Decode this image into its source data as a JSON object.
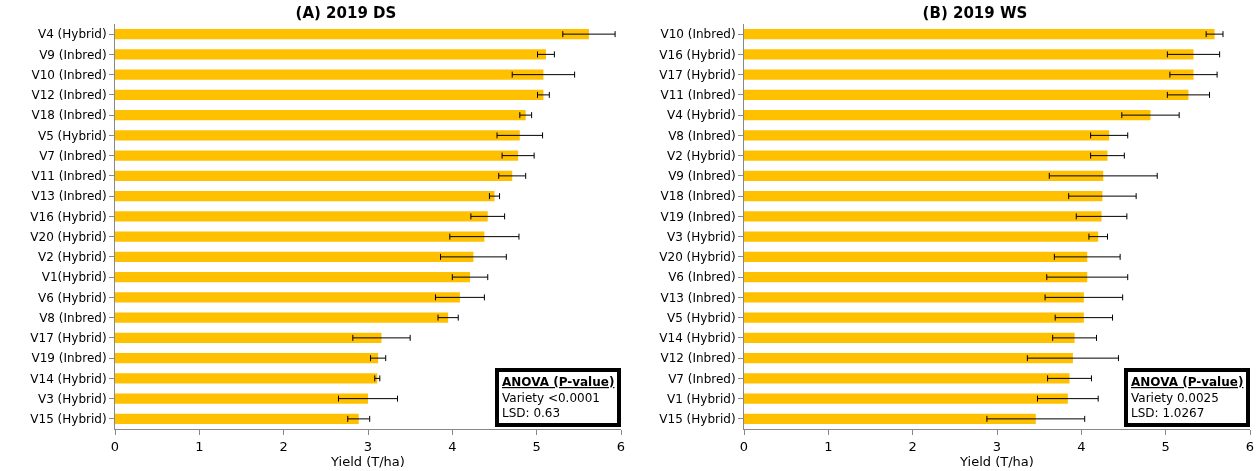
{
  "chart_data": [
    {
      "type": "bar",
      "orientation": "horizontal",
      "title": "(A) 2019 DS",
      "xlabel": "Yield (T/ha)",
      "color": "#ffc000",
      "categories": [
        "V4 (Hybrid)",
        "V9 (Inbred)",
        "V10 (Inbred)",
        "V12 (Inbred)",
        "V18 (Inbred)",
        "V5 (Hybrid)",
        "V7 (Inbred)",
        "V11 (Inbred)",
        "V13 (Inbred)",
        "V16 (Hybrid)",
        "V20 (Hybrid)",
        "V2 (Hybrid)",
        "V1(Hybrid)",
        "V6 (Hybrid)",
        "V8 (Inbred)",
        "V17 (Hybrid)",
        "V19 (Inbred)",
        "V14 (Hybrid)",
        "V3 (Hybrid)",
        "V15 (Hybrid)"
      ],
      "values": [
        5.62,
        5.11,
        5.08,
        5.08,
        4.87,
        4.8,
        4.78,
        4.71,
        4.5,
        4.42,
        4.38,
        4.25,
        4.21,
        4.09,
        3.95,
        3.16,
        3.12,
        3.11,
        3.0,
        2.89
      ],
      "errors": [
        0.31,
        0.1,
        0.37,
        0.07,
        0.07,
        0.27,
        0.19,
        0.16,
        0.06,
        0.2,
        0.41,
        0.39,
        0.21,
        0.29,
        0.12,
        0.34,
        0.09,
        0.03,
        0.35,
        0.13
      ],
      "xlim": [
        0,
        6
      ],
      "xticks": [
        0,
        1,
        2,
        3,
        4,
        5,
        6
      ],
      "annotations": [
        "ANOVA (P-value)",
        "Variety <0.0001",
        "LSD: 0.63"
      ]
    },
    {
      "type": "bar",
      "orientation": "horizontal",
      "title": "(B) 2019 WS",
      "xlabel": "Yield (T/ha)",
      "color": "#ffc000",
      "categories": [
        "V10 (Inbred)",
        "V16 (Hybrid)",
        "V17 (Hybrid)",
        "V11 (Inbred)",
        "V4 (Hybrid)",
        "V8 (Inbred)",
        "V2 (Hybrid)",
        "V9 (Inbred)",
        "V18 (Inbred)",
        "V19 (Inbred)",
        "V3 (Hybrid)",
        "V20 (Hybrid)",
        "V6 (Inbred)",
        "V13 (Inbred)",
        "V5 (Hybrid)",
        "V14 (Hybrid)",
        "V12 (Inbred)",
        "V7 (Inbred)",
        "V1 (Hybrid)",
        "V15 (Hybrid)"
      ],
      "values": [
        5.58,
        5.33,
        5.33,
        5.27,
        4.82,
        4.33,
        4.31,
        4.26,
        4.25,
        4.24,
        4.2,
        4.07,
        4.07,
        4.03,
        4.03,
        3.92,
        3.9,
        3.86,
        3.84,
        3.46
      ],
      "errors": [
        0.1,
        0.31,
        0.28,
        0.25,
        0.34,
        0.22,
        0.2,
        0.64,
        0.4,
        0.3,
        0.11,
        0.39,
        0.48,
        0.46,
        0.34,
        0.26,
        0.54,
        0.26,
        0.36,
        0.58
      ],
      "xlim": [
        0,
        6
      ],
      "xticks": [
        0,
        1,
        2,
        3,
        4,
        5,
        6
      ],
      "annotations": [
        "ANOVA (P-value)",
        "Variety 0.0025",
        "LSD: 1.0267"
      ]
    }
  ]
}
